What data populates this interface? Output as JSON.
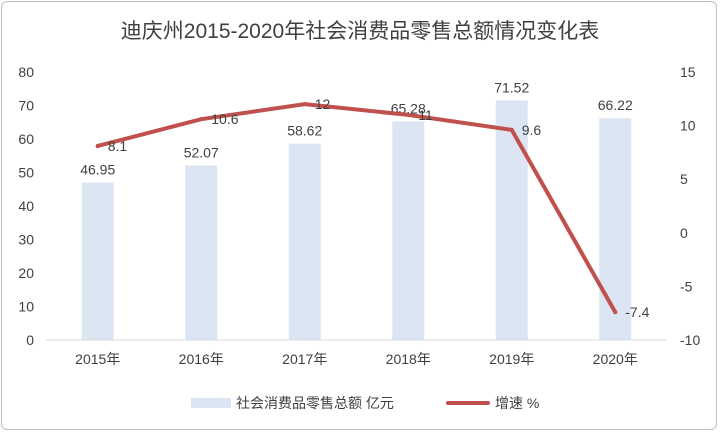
{
  "chart_data": {
    "type": "bar+line",
    "title": "迪庆州2015-2020年社会消费品零售总额情况变化表",
    "categories": [
      "2015年",
      "2016年",
      "2017年",
      "2018年",
      "2019年",
      "2020年"
    ],
    "series": [
      {
        "name": "社会消费品零售总额 亿元",
        "type": "bar",
        "axis": "left",
        "values": [
          46.95,
          52.07,
          58.62,
          65.28,
          71.52,
          66.22
        ],
        "labels": [
          "46.95",
          "52.07",
          "58.62",
          "65.28",
          "71.52",
          "66.22"
        ],
        "color": "#dce6f2"
      },
      {
        "name": "增速 %",
        "type": "line",
        "axis": "right",
        "values": [
          8.1,
          10.6,
          12,
          11,
          9.6,
          -7.4
        ],
        "labels": [
          "8.1",
          "10.6",
          "12",
          "11",
          "9.6",
          "-7.4"
        ],
        "color": "#c0504d"
      }
    ],
    "y_left": {
      "min": 0,
      "max": 80,
      "ticks": [
        "0",
        "10",
        "20",
        "30",
        "40",
        "50",
        "60",
        "70",
        "80"
      ]
    },
    "y_right": {
      "min": -10,
      "max": 15,
      "ticks": [
        "-10",
        "-5",
        "0",
        "5",
        "10",
        "15"
      ]
    },
    "grid": false,
    "legend_position": "bottom"
  }
}
